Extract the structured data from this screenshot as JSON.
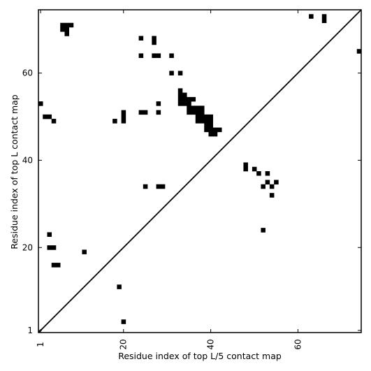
{
  "chart_data": {
    "type": "heatmap",
    "title": "",
    "xlabel": "Residue index of top L/5 contact map",
    "ylabel": "Residue index of top L contact map",
    "xlim": [
      0.5,
      74.5
    ],
    "ylim": [
      0.5,
      74.5
    ],
    "x_ticks": [
      1,
      20,
      40,
      60
    ],
    "y_ticks": [
      1,
      20,
      40,
      60
    ],
    "x_tick_labels": [
      "1",
      "20",
      "40",
      "60"
    ],
    "y_tick_labels": [
      "1",
      "20",
      "40",
      "60"
    ],
    "x_tick_rotation_deg": -90,
    "grid": false,
    "diagonal": true,
    "cell_color": "#000000",
    "background_color": "#ffffff",
    "cells": [
      [
        6,
        71
      ],
      [
        7,
        71
      ],
      [
        8,
        71
      ],
      [
        6,
        70
      ],
      [
        7,
        70
      ],
      [
        7,
        69
      ],
      [
        63,
        73
      ],
      [
        66,
        73
      ],
      [
        66,
        72
      ],
      [
        74,
        65
      ],
      [
        24,
        68
      ],
      [
        27,
        68
      ],
      [
        27,
        67
      ],
      [
        24,
        64
      ],
      [
        27,
        64
      ],
      [
        28,
        64
      ],
      [
        31,
        64
      ],
      [
        31,
        60
      ],
      [
        33,
        60
      ],
      [
        1,
        53
      ],
      [
        28,
        53
      ],
      [
        2,
        50
      ],
      [
        3,
        50
      ],
      [
        4,
        49
      ],
      [
        18,
        49
      ],
      [
        20,
        49
      ],
      [
        20,
        50
      ],
      [
        20,
        51
      ],
      [
        24,
        51
      ],
      [
        25,
        51
      ],
      [
        28,
        51
      ],
      [
        33,
        56
      ],
      [
        33,
        55
      ],
      [
        34,
        55
      ],
      [
        33,
        54
      ],
      [
        34,
        54
      ],
      [
        35,
        54
      ],
      [
        36,
        54
      ],
      [
        33,
        53
      ],
      [
        34,
        53
      ],
      [
        35,
        53
      ],
      [
        35,
        52
      ],
      [
        36,
        52
      ],
      [
        37,
        52
      ],
      [
        38,
        52
      ],
      [
        35,
        51
      ],
      [
        36,
        51
      ],
      [
        37,
        51
      ],
      [
        38,
        51
      ],
      [
        37,
        50
      ],
      [
        38,
        50
      ],
      [
        39,
        50
      ],
      [
        40,
        50
      ],
      [
        37,
        49
      ],
      [
        38,
        49
      ],
      [
        39,
        49
      ],
      [
        40,
        49
      ],
      [
        39,
        48
      ],
      [
        40,
        48
      ],
      [
        39,
        47
      ],
      [
        40,
        47
      ],
      [
        41,
        47
      ],
      [
        42,
        47
      ],
      [
        40,
        46
      ],
      [
        41,
        46
      ],
      [
        48,
        39
      ],
      [
        48,
        38
      ],
      [
        50,
        38
      ],
      [
        51,
        37
      ],
      [
        53,
        37
      ],
      [
        53,
        35
      ],
      [
        55,
        35
      ],
      [
        52,
        34
      ],
      [
        54,
        34
      ],
      [
        54,
        32
      ],
      [
        52,
        24
      ],
      [
        25,
        34
      ],
      [
        28,
        34
      ],
      [
        29,
        34
      ],
      [
        3,
        23
      ],
      [
        3,
        20
      ],
      [
        4,
        20
      ],
      [
        4,
        16
      ],
      [
        5,
        16
      ],
      [
        11,
        19
      ],
      [
        19,
        11
      ],
      [
        20,
        3
      ]
    ]
  }
}
